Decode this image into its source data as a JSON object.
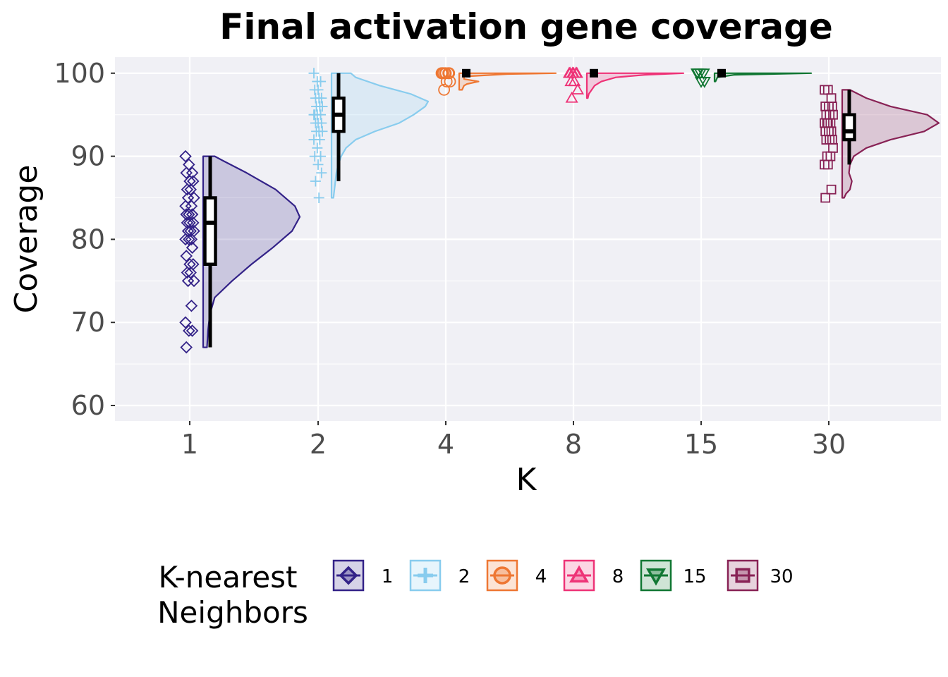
{
  "chart_data": {
    "type": "raincloud",
    "title": "Final activation gene coverage",
    "xlabel": "K",
    "ylabel": "Coverage",
    "ylim": [
      58,
      102
    ],
    "yticks": [
      60,
      70,
      80,
      90,
      100
    ],
    "grid": true,
    "legend": {
      "title_lines": [
        "K-nearest",
        "Neighbors"
      ],
      "placement": "bottom"
    },
    "categories": [
      "1",
      "2",
      "4",
      "8",
      "15",
      "30"
    ],
    "series": [
      {
        "name": "1",
        "color": "#332288",
        "marker": "diamond",
        "box": {
          "min": 67,
          "q1": 77,
          "median": 82,
          "q3": 85,
          "max": 90
        },
        "density": [
          [
            67,
            0.04
          ],
          [
            69,
            0.05
          ],
          [
            71,
            0.07
          ],
          [
            73,
            0.12
          ],
          [
            75,
            0.3
          ],
          [
            77,
            0.5
          ],
          [
            79,
            0.72
          ],
          [
            81,
            0.92
          ],
          [
            82.7,
            1.0
          ],
          [
            84,
            0.95
          ],
          [
            86,
            0.75
          ],
          [
            88,
            0.45
          ],
          [
            89.5,
            0.2
          ],
          [
            90,
            0.12
          ]
        ],
        "points": [
          90,
          89,
          88,
          88,
          87,
          87,
          86,
          86,
          85,
          85,
          84,
          84,
          83,
          83,
          83,
          82,
          82,
          82,
          81,
          81,
          81,
          80,
          80,
          80,
          79,
          78,
          77,
          77,
          76,
          76,
          75,
          75,
          72,
          70,
          69,
          69,
          67
        ]
      },
      {
        "name": "2",
        "color": "#88ccee",
        "marker": "plus",
        "box": {
          "min": 87,
          "q1": 93,
          "median": 95,
          "q3": 97,
          "max": 100
        },
        "density": [
          [
            85,
            0.02
          ],
          [
            86,
            0.03
          ],
          [
            87,
            0.04
          ],
          [
            88,
            0.05
          ],
          [
            89,
            0.07
          ],
          [
            90,
            0.1
          ],
          [
            91,
            0.15
          ],
          [
            92,
            0.25
          ],
          [
            93,
            0.45
          ],
          [
            94,
            0.7
          ],
          [
            95,
            0.85
          ],
          [
            96,
            0.97
          ],
          [
            96.6,
            1.0
          ],
          [
            97.5,
            0.82
          ],
          [
            98.5,
            0.5
          ],
          [
            99.5,
            0.25
          ],
          [
            100,
            0.2
          ]
        ],
        "points": [
          100,
          99,
          99,
          98,
          98,
          97,
          97,
          97,
          96,
          96,
          96,
          95,
          95,
          95,
          95,
          94,
          94,
          94,
          93,
          93,
          93,
          92,
          92,
          91,
          90,
          90,
          89,
          88,
          87,
          85
        ]
      },
      {
        "name": "4",
        "color": "#ee7733",
        "marker": "circle",
        "box": {
          "min": 100,
          "q1": 100,
          "median": 100,
          "q3": 100,
          "max": 100
        },
        "density": [
          [
            98,
            0.03
          ],
          [
            98.5,
            0.05
          ],
          [
            98.7,
            0.08
          ],
          [
            99,
            0.2
          ],
          [
            99.3,
            0.05
          ],
          [
            99.6,
            0.05
          ],
          [
            99.9,
            0.5
          ],
          [
            100,
            1.0
          ]
        ],
        "points": [
          100,
          100,
          100,
          100,
          100,
          100,
          100,
          99,
          99,
          98
        ]
      },
      {
        "name": "8",
        "color": "#ee3377",
        "marker": "triangle-up",
        "box": {
          "min": 100,
          "q1": 100,
          "median": 100,
          "q3": 100,
          "max": 100
        },
        "density": [
          [
            97,
            0.01
          ],
          [
            97.5,
            0.02
          ],
          [
            98,
            0.05
          ],
          [
            98.5,
            0.08
          ],
          [
            99,
            0.15
          ],
          [
            99.5,
            0.3
          ],
          [
            99.8,
            0.6
          ],
          [
            100,
            1.0
          ]
        ],
        "points": [
          100,
          100,
          100,
          100,
          100,
          100,
          99,
          99,
          98,
          97
        ]
      },
      {
        "name": "15",
        "color": "#117733",
        "marker": "triangle-down",
        "box": {
          "min": 100,
          "q1": 100,
          "median": 100,
          "q3": 100,
          "max": 100
        },
        "density": [
          [
            99,
            0.01
          ],
          [
            99.5,
            0.03
          ],
          [
            99.8,
            0.2
          ],
          [
            100,
            1.0
          ]
        ],
        "points": [
          100,
          100,
          100,
          100,
          99,
          99
        ]
      },
      {
        "name": "30",
        "color": "#882255",
        "marker": "square",
        "box": {
          "min": 89,
          "q1": 92,
          "median": 93,
          "q3": 95,
          "max": 98
        },
        "density": [
          [
            85,
            0.02
          ],
          [
            85.5,
            0.04
          ],
          [
            86,
            0.08
          ],
          [
            87,
            0.1
          ],
          [
            88,
            0.07
          ],
          [
            89,
            0.08
          ],
          [
            90,
            0.12
          ],
          [
            91,
            0.25
          ],
          [
            92,
            0.5
          ],
          [
            93,
            0.85
          ],
          [
            94,
            1.0
          ],
          [
            95,
            0.88
          ],
          [
            96,
            0.5
          ],
          [
            97,
            0.25
          ],
          [
            98,
            0.08
          ]
        ],
        "points": [
          98,
          98,
          97,
          96,
          96,
          96,
          95,
          95,
          95,
          94,
          94,
          94,
          94,
          93,
          93,
          93,
          92,
          92,
          92,
          91,
          90,
          90,
          89,
          89,
          86,
          85
        ]
      }
    ]
  }
}
